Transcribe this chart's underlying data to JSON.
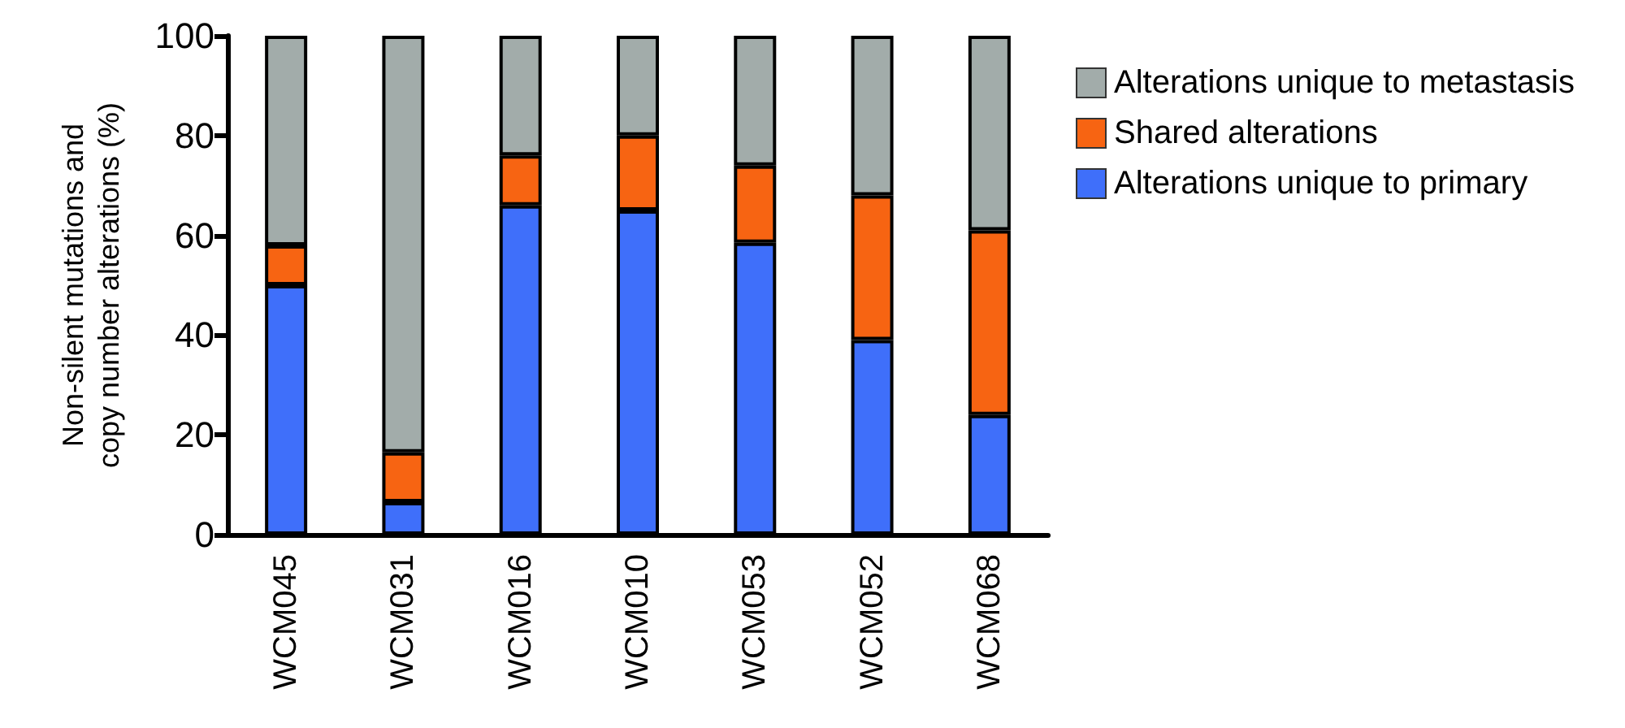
{
  "chart_data": {
    "type": "bar",
    "stacked": true,
    "ylabel": "Non-silent mutations and\ncopy number alterations (%)",
    "categories": [
      "WCM045",
      "WCM031",
      "WCM016",
      "WCM010",
      "WCM053",
      "WCM052",
      "WCM068"
    ],
    "series": [
      {
        "name": "Alterations unique to primary",
        "color": "#3f6ffa",
        "values": [
          50,
          6.5,
          66,
          65,
          58.5,
          39,
          24
        ]
      },
      {
        "name": "Shared alterations",
        "color": "#f76412",
        "values": [
          8,
          10,
          10,
          15,
          15.5,
          29,
          37
        ]
      },
      {
        "name": "Alterations unique to metastasis",
        "color": "#a2acaa",
        "values": [
          42,
          83.5,
          24,
          20,
          26,
          32,
          39
        ]
      }
    ],
    "ylim": [
      0,
      100
    ],
    "yticks": [
      0,
      20,
      40,
      60,
      80,
      100
    ],
    "grid": false,
    "legend": "top right"
  }
}
